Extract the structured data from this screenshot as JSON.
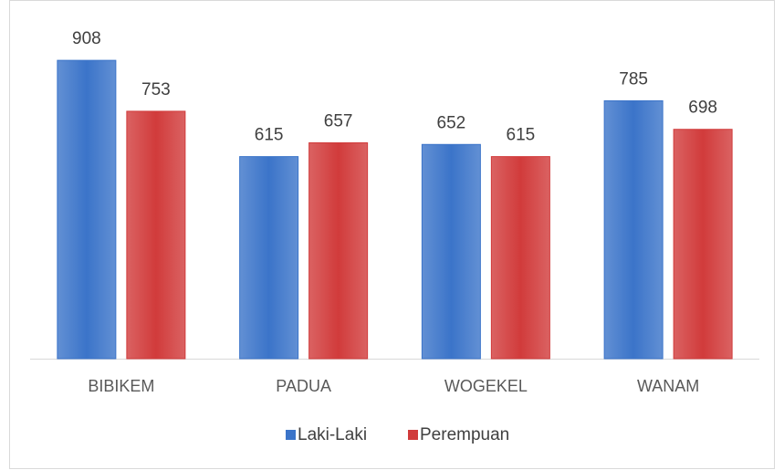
{
  "chart_data": {
    "type": "bar",
    "categories": [
      "BIBIKEM",
      "PADUA",
      "WOGEKEL",
      "WANAM"
    ],
    "series": [
      {
        "name": "Laki-Laki",
        "color": "#3b74c9",
        "values": [
          908,
          615,
          652,
          785
        ]
      },
      {
        "name": "Perempuan",
        "color": "#d13b3b",
        "values": [
          753,
          657,
          615,
          698
        ]
      }
    ],
    "ylim": [
      0,
      1000
    ],
    "legend": "bottom"
  }
}
